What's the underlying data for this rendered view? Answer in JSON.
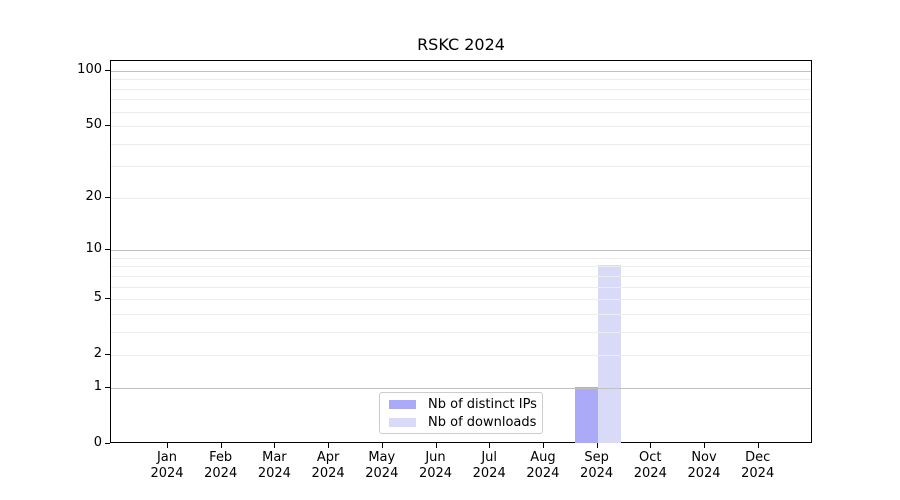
{
  "window": {
    "background": "#ffffff"
  },
  "chart_data": {
    "type": "bar",
    "title": "RSKC 2024",
    "categories": [
      "Jan 2024",
      "Feb 2024",
      "Mar 2024",
      "Apr 2024",
      "May 2024",
      "Jun 2024",
      "Jul 2024",
      "Aug 2024",
      "Sep 2024",
      "Oct 2024",
      "Nov 2024",
      "Dec 2024"
    ],
    "series": [
      {
        "name": "Nb of distinct IPs",
        "color": "#aaaaf8",
        "values": [
          0,
          0,
          0,
          0,
          0,
          0,
          0,
          0,
          1,
          0,
          0,
          0
        ]
      },
      {
        "name": "Nb of downloads",
        "color": "#d9d9f8",
        "values": [
          0,
          0,
          0,
          0,
          0,
          0,
          0,
          0,
          8,
          0,
          0,
          0
        ]
      }
    ],
    "xlabel": "",
    "ylabel": "",
    "y_axis": {
      "scale": "log10(1+v)",
      "ylim": [
        0,
        100
      ],
      "tick_values": [
        0,
        1,
        2,
        5,
        10,
        20,
        50,
        100
      ],
      "tick_labels": [
        "0",
        "1",
        "2",
        "5",
        "10",
        "20",
        "50",
        "100"
      ],
      "major_grid_values": [
        1,
        10,
        100
      ],
      "minor_grid_values": [
        2,
        3,
        4,
        5,
        6,
        7,
        8,
        9,
        20,
        30,
        40,
        50,
        60,
        70,
        80,
        90
      ]
    },
    "grid": "horizontal",
    "legend": {
      "position": "bottom-center",
      "entries": [
        "Nb of distinct IPs",
        "Nb of downloads"
      ]
    },
    "colors": {
      "major_grid": "#c0c0c0",
      "minor_grid": "#ededed",
      "axis": "#000000",
      "legend_border": "#cccccc",
      "background": "#ffffff"
    }
  }
}
